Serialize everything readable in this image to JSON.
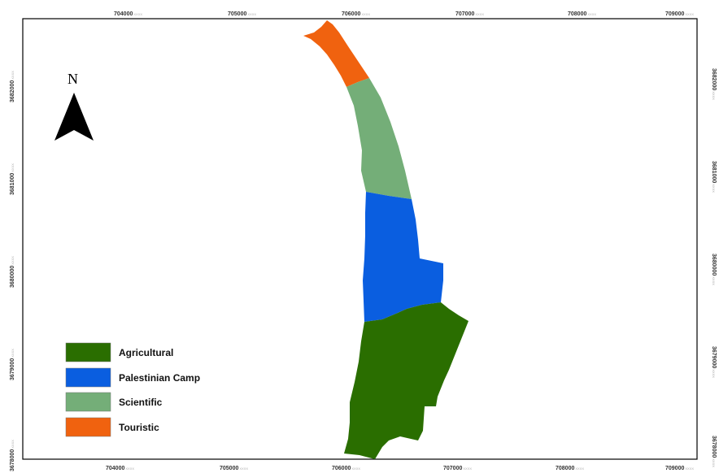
{
  "north_arrow": {
    "letter": "N",
    "icon": "north-arrow-icon"
  },
  "x_ticks": [
    "704000",
    "705000",
    "706000",
    "707000",
    "708000",
    "709000"
  ],
  "x_tick_unit": "XXXX",
  "y_ticks": [
    "3682000",
    "3681000",
    "3680000",
    "3679000",
    "3678000"
  ],
  "y_tick_unit": "XXXX",
  "legend": [
    {
      "label": "Agricultural",
      "color": "#2a6e00"
    },
    {
      "label": "Palestinian Camp",
      "color": "#0a5ee0"
    },
    {
      "label": "Scientific",
      "color": "#74ae78"
    },
    {
      "label": "Touristic",
      "color": "#f0620f"
    }
  ],
  "zones": [
    {
      "name": "Touristic",
      "color": "#f0620f"
    },
    {
      "name": "Scientific",
      "color": "#74ae78"
    },
    {
      "name": "Palestinian Camp",
      "color": "#0a5ee0"
    },
    {
      "name": "Agricultural",
      "color": "#2a6e00"
    }
  ]
}
